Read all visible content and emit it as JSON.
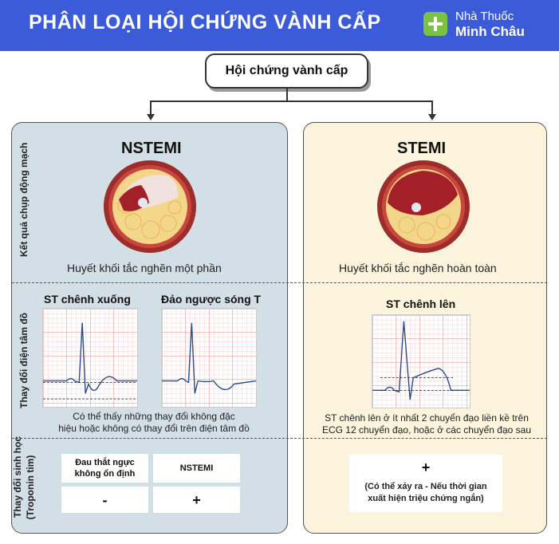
{
  "header": {
    "title": "PHÂN LOẠI HỘI CHỨNG VÀNH CẤP",
    "brand_line1": "Nhà Thuốc",
    "brand_line2": "Minh Châu",
    "color": "#3b5bd9"
  },
  "root": {
    "label": "Hội chứng vành cấp"
  },
  "rows": {
    "angiography": "Kết quả chụp động mạch",
    "ecg": "Thay đổi điện tâm đồ",
    "biomarker_1": "Thay đổi sinh học",
    "biomarker_2": "(Troponin tim)"
  },
  "nstemi": {
    "title": "NSTEMI",
    "artery_caption": "Huyết khối tắc nghẽn một phần",
    "ecg1_title": "ST chênh xuống",
    "ecg2_title": "Đảo ngược sóng T",
    "ecg_note_1": "Có thể thấy những thay đổi không đặc",
    "ecg_note_2": "hiệu hoặc không có thay đổi trên điện tâm đồ",
    "table": {
      "col1_header": "Đau thắt ngực không ổn định",
      "col2_header": "NSTEMI",
      "col1_value": "-",
      "col2_value": "+"
    },
    "panel_color": "#d3dfe6"
  },
  "stemi": {
    "title": "STEMI",
    "artery_caption": "Huyết khối tắc nghẽn hoàn toàn",
    "ecg_title": "ST chênh lên",
    "ecg_note_1": "ST chênh lên ở ít nhất 2 chuyển đạo liền kề trên",
    "ecg_note_2": "ECG 12 chuyển đạo, hoặc ở các chuyển đạo sau",
    "bio_value": "+",
    "bio_note_1": "(Có thể xảy ra - Nếu thời gian",
    "bio_note_2": "xuất hiện triệu chứng ngắn)",
    "panel_color": "#fbf3dc"
  }
}
